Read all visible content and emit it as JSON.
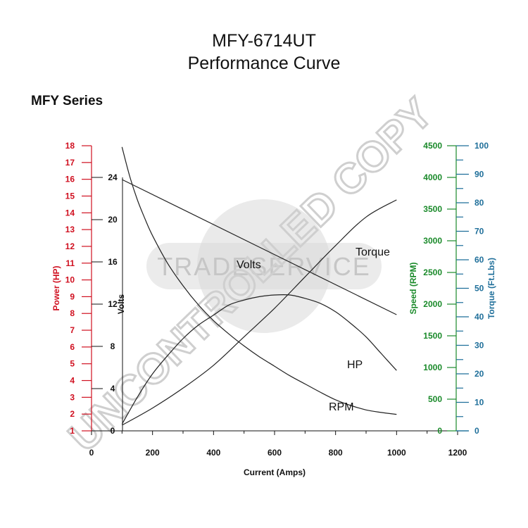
{
  "title_line1": "MFY-6714UT",
  "title_line2": "Performance Curve",
  "series_label": "MFY Series",
  "watermark": {
    "text1": "UNCONTROLLED COPY",
    "text2": "TRADESERVICE"
  },
  "colors": {
    "power_axis": "#d01020",
    "speed_axis": "#1a8a2a",
    "torque_axis": "#1f6f9a",
    "curve": "#222222",
    "watermark": "#d8d8d8"
  },
  "chart_data": {
    "type": "line",
    "xlabel": "Current (Amps)",
    "xlim": [
      0,
      1200
    ],
    "xticks": [
      0,
      200,
      400,
      600,
      800,
      1000,
      1200
    ],
    "axes": {
      "power": {
        "label": "Power (HP)",
        "range": [
          1,
          18
        ],
        "ticks": [
          1,
          2,
          3,
          4,
          5,
          6,
          7,
          8,
          9,
          10,
          11,
          12,
          13,
          14,
          15,
          16,
          17,
          18
        ]
      },
      "volts": {
        "label": "Volts",
        "range": [
          0,
          27
        ],
        "ticks": [
          0,
          4,
          8,
          12,
          16,
          20,
          24
        ]
      },
      "speed": {
        "label": "Speed (RPM)",
        "range": [
          0,
          4500
        ],
        "ticks": [
          0,
          500,
          1000,
          1500,
          2000,
          2500,
          3000,
          3500,
          4000,
          4500
        ]
      },
      "torque": {
        "label": "Torque (Ft.Lbs)",
        "range": [
          0,
          100
        ],
        "ticks": [
          0,
          10,
          20,
          30,
          40,
          50,
          60,
          70,
          80,
          90,
          100
        ]
      }
    },
    "series": [
      {
        "name": "Volts",
        "axis": "volts",
        "x": [
          100,
          1000
        ],
        "y": [
          23.8,
          11
        ]
      },
      {
        "name": "HP",
        "axis": "power",
        "x": [
          100,
          150,
          200,
          250,
          300,
          350,
          400,
          450,
          500,
          550,
          600,
          650,
          700,
          750,
          800,
          850,
          900,
          950,
          1000
        ],
        "y": [
          1.4,
          3.0,
          4.4,
          5.5,
          6.5,
          7.3,
          7.9,
          8.5,
          8.8,
          9.0,
          9.1,
          9.1,
          8.9,
          8.6,
          8.1,
          7.4,
          6.6,
          5.6,
          4.6
        ]
      },
      {
        "name": "RPM",
        "axis": "speed",
        "x": [
          100,
          125,
          150,
          175,
          200,
          250,
          300,
          350,
          400,
          450,
          500,
          550,
          600,
          650,
          700,
          750,
          800,
          850,
          900,
          950,
          1000
        ],
        "y": [
          4480,
          4020,
          3650,
          3350,
          3080,
          2640,
          2290,
          1990,
          1740,
          1530,
          1340,
          1170,
          1020,
          870,
          740,
          610,
          490,
          400,
          330,
          290,
          260
        ]
      },
      {
        "name": "Torque",
        "axis": "torque",
        "x": [
          100,
          200,
          300,
          400,
          500,
          600,
          700,
          800,
          900,
          1000
        ],
        "y": [
          2,
          8,
          15,
          23,
          33,
          43,
          54,
          65,
          75,
          81
        ]
      }
    ]
  }
}
